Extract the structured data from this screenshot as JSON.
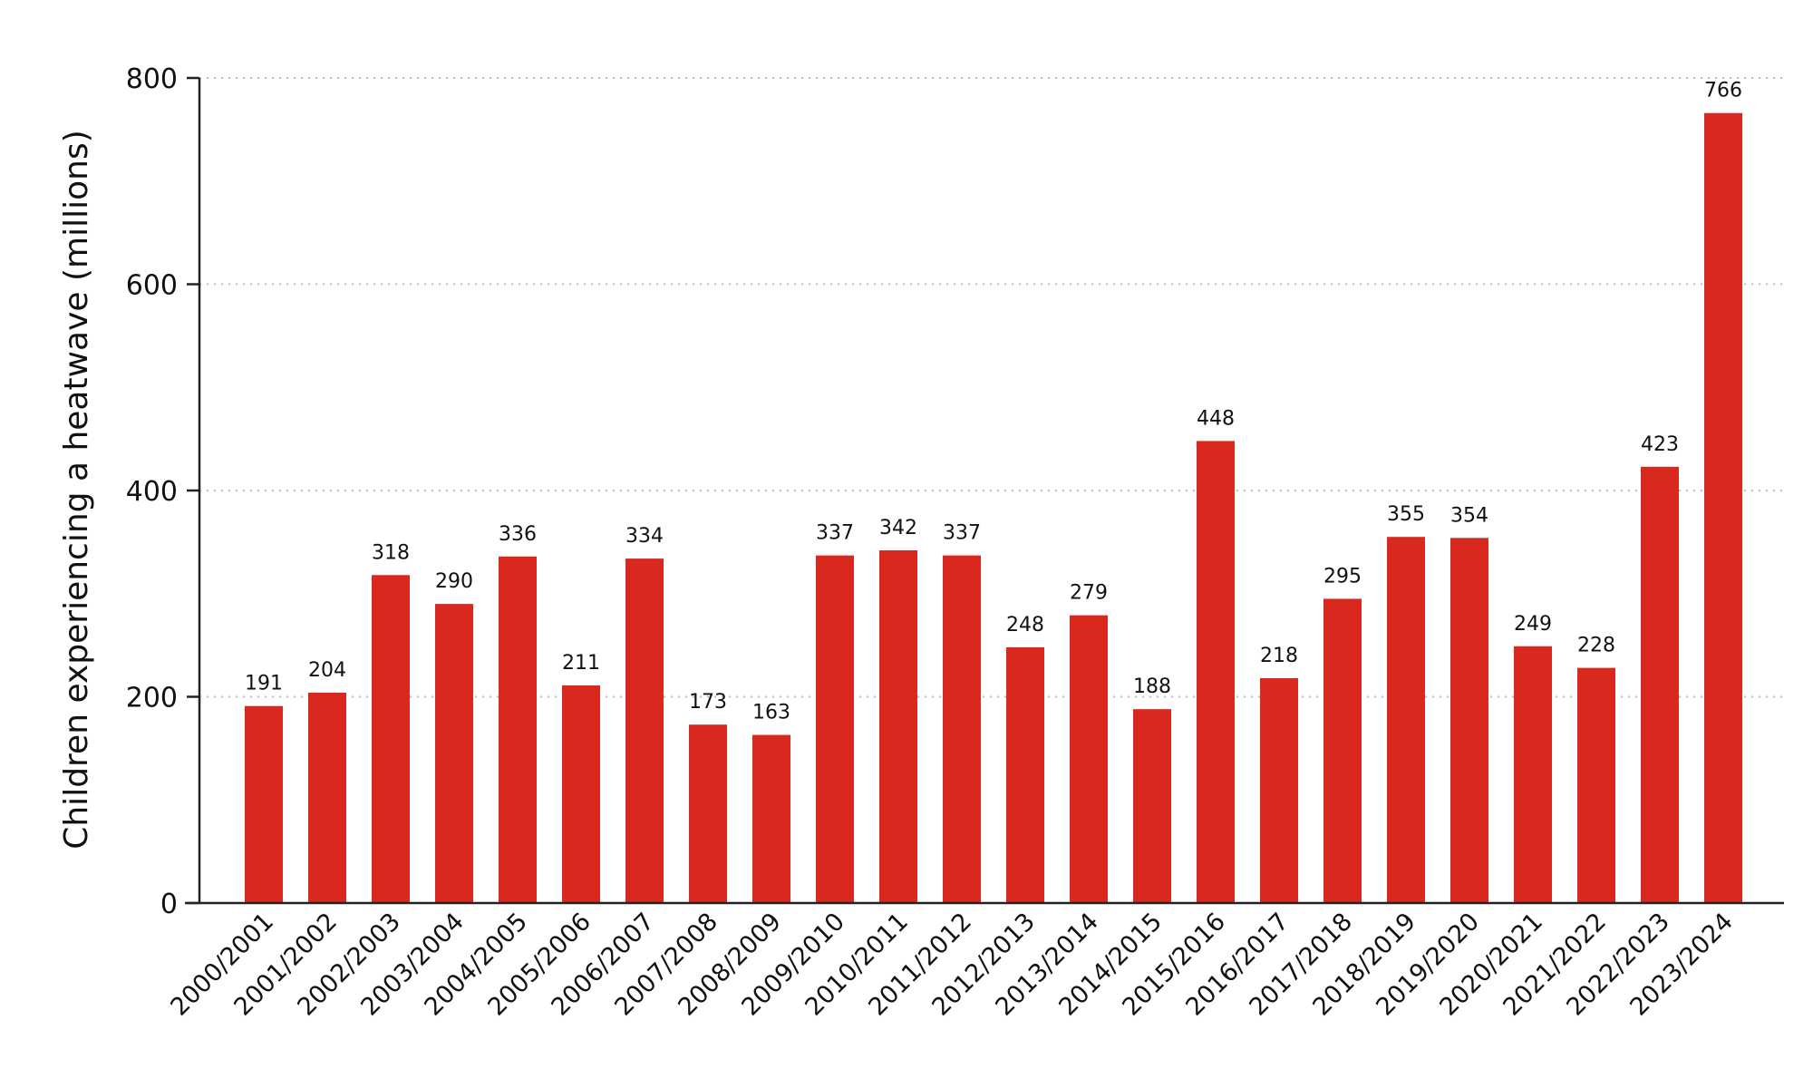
{
  "chart_data": {
    "type": "bar",
    "title": "",
    "xlabel": "",
    "ylabel": "Children experiencing a heatwave (millions)",
    "ylim": [
      0,
      800
    ],
    "yticks": [
      0,
      200,
      400,
      600,
      800
    ],
    "grid": "horizontal-dotted",
    "legend": "none",
    "bar_color": "#d9281e",
    "categories": [
      "2000/2001",
      "2001/2002",
      "2002/2003",
      "2003/2004",
      "2004/2005",
      "2005/2006",
      "2006/2007",
      "2007/2008",
      "2008/2009",
      "2009/2010",
      "2010/2011",
      "2011/2012",
      "2012/2013",
      "2013/2014",
      "2014/2015",
      "2015/2016",
      "2016/2017",
      "2017/2018",
      "2018/2019",
      "2019/2020",
      "2020/2021",
      "2021/2022",
      "2022/2023",
      "2023/2024"
    ],
    "values": [
      191,
      204,
      318,
      290,
      336,
      211,
      334,
      173,
      163,
      337,
      342,
      337,
      248,
      279,
      188,
      448,
      218,
      295,
      355,
      354,
      249,
      228,
      423,
      766
    ]
  }
}
